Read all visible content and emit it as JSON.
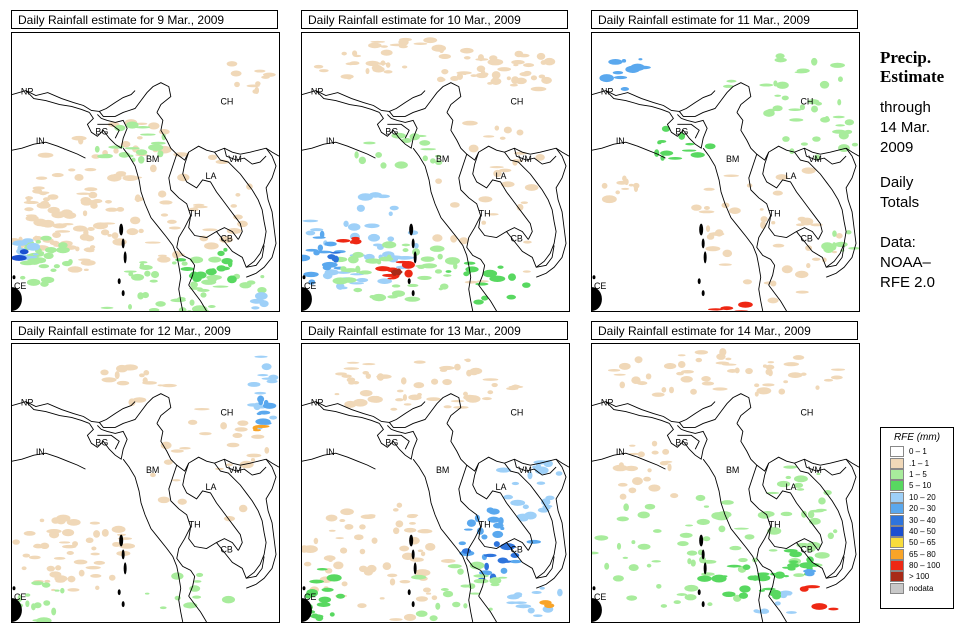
{
  "panels": [
    {
      "title": "Daily Rainfall estimate for  9 Mar., 2009",
      "rain": "d9"
    },
    {
      "title": "Daily Rainfall estimate for  10 Mar., 2009",
      "rain": "d10"
    },
    {
      "title": "Daily Rainfall estimate for  11 Mar., 2009",
      "rain": "d11"
    },
    {
      "title": "Daily Rainfall estimate for  12 Mar., 2009",
      "rain": "d12"
    },
    {
      "title": "Daily Rainfall estimate for  13 Mar., 2009",
      "rain": "d13"
    },
    {
      "title": "Daily Rainfall estimate for  14 Mar., 2009",
      "rain": "d14"
    }
  ],
  "country_labels": {
    "np": "NP",
    "ch": "CH",
    "in": "IN",
    "bg": "BG",
    "bm": "BM",
    "vm": "VM",
    "la": "LA",
    "th": "TH",
    "cb": "CB",
    "ce": "CE"
  },
  "side": {
    "head1": "Precip.",
    "head2": "Estimate",
    "line1": "through",
    "line2": "14 Mar.",
    "line3": "2009",
    "line4": "Daily",
    "line5": "Totals",
    "line6": "Data:",
    "line7": "NOAA–",
    "line8": "RFE 2.0"
  },
  "legend": {
    "title": "RFE (mm)",
    "items": [
      {
        "label": "0 – 1",
        "color": "#ffffff"
      },
      {
        "label": ".1 – 1",
        "color": "#f0d8b8"
      },
      {
        "label": "1 – 5",
        "color": "#a8ec9c"
      },
      {
        "label": "5 – 10",
        "color": "#58d860"
      },
      {
        "label": "10 – 20",
        "color": "#9ed0f8"
      },
      {
        "label": "20 – 30",
        "color": "#5aa8ee"
      },
      {
        "label": "30 – 40",
        "color": "#2e74dc"
      },
      {
        "label": "40 – 50",
        "color": "#1b4fd0"
      },
      {
        "label": "50 – 65",
        "color": "#f8dc3c"
      },
      {
        "label": "65 – 80",
        "color": "#f8a428"
      },
      {
        "label": "80 – 100",
        "color": "#ee2814"
      },
      {
        "label": "> 100",
        "color": "#a82a18"
      },
      {
        "label": "nodata",
        "color": "#c8c8c8"
      }
    ]
  }
}
